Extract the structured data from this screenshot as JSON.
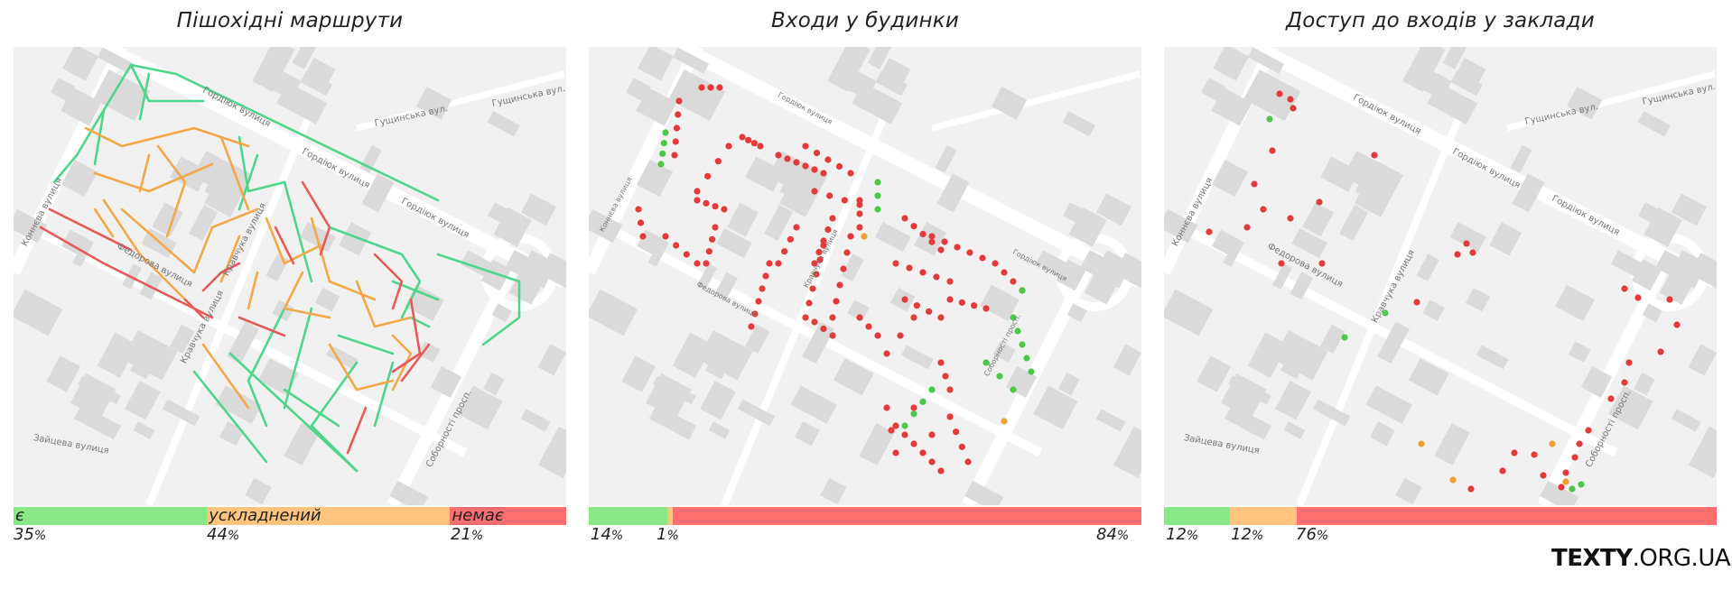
{
  "colors": {
    "green": "#88e886",
    "orange": "#ffc57e",
    "red": "#fd6f6e",
    "route_green": "#4fd68a",
    "route_orange": "#f5a849",
    "route_red": "#e85a5a",
    "dot_red": "#e5393b",
    "dot_green": "#4cc94a",
    "dot_orange": "#f0a030"
  },
  "panels": [
    {
      "title": "Пішохідні маршрути",
      "legend": [
        {
          "label": "є",
          "value": 35,
          "display": "35"
        },
        {
          "label": "ускладнений",
          "value": 44,
          "display": "44"
        },
        {
          "label": "немає",
          "value": 21,
          "display": "21"
        }
      ],
      "streets": [
        "Гордіюк вулиця",
        "Гордіюк вулиця",
        "Гордіюк вулиця",
        "Коннєва вулиця",
        "Федорова вулиця",
        "Кравчука вулиця",
        "Кравчука вулиця",
        "Соборності просп.",
        "Гущинська вул.",
        "Гущинська вул.",
        "Зайцева вулиця"
      ]
    },
    {
      "title": "Входи у будинки",
      "legend": [
        {
          "label": "",
          "value": 14,
          "display": "14"
        },
        {
          "label": "",
          "value": 1,
          "display": "1"
        },
        {
          "label": "",
          "value": 84,
          "display": "84"
        }
      ],
      "streets": [
        "Гордіюк вулиця",
        "Гордіюк вулиця",
        "Коннєва вулиця",
        "Федорова вулиця",
        "Кравчука вулиця",
        "Соборності просп."
      ]
    },
    {
      "title": "Доступ до входів у заклади",
      "legend": [
        {
          "label": "",
          "value": 12,
          "display": "12"
        },
        {
          "label": "",
          "value": 12,
          "display": "12"
        },
        {
          "label": "",
          "value": 76,
          "display": "76"
        }
      ],
      "streets": [
        "Гордіюк вулиця",
        "Гордіюк вулиця",
        "Гордіюк вулиця",
        "Коннєва вулиця",
        "Федорова вулиця",
        "Кравчука вулиця",
        "Соборності просп.",
        "Гущинська вул.",
        "Гущинська вул.",
        "Зайцева вулиця"
      ]
    }
  ],
  "percent_sign": "%",
  "brand": {
    "bold": "TEXTY",
    "rest": ".ORG.UA"
  }
}
